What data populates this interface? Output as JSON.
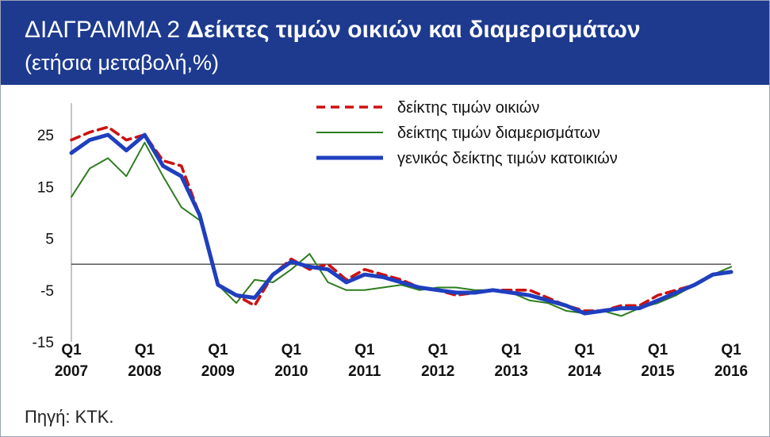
{
  "header": {
    "title_prefix": "ΔΙΑΓΡΑΜΜΑ 2",
    "title_main": "Δείκτες τιμών οικιών και διαμερισμάτων",
    "subtitle": "(ετήσια μεταβολή,%)"
  },
  "source": "Πηγή: ΚΤΚ.",
  "colors": {
    "header_bg": "#1d3a8f",
    "houses": "#cc1111",
    "apartments": "#2e7d1e",
    "general": "#1f3fbf"
  },
  "chart_data": {
    "type": "line",
    "ylim": [
      -15,
      30
    ],
    "yticks": [
      25,
      15,
      5,
      -5,
      -15
    ],
    "xticks": [
      {
        "index": 0,
        "q": "Q1",
        "year": "2007"
      },
      {
        "index": 4,
        "q": "Q1",
        "year": "2008"
      },
      {
        "index": 8,
        "q": "Q1",
        "year": "2009"
      },
      {
        "index": 12,
        "q": "Q1",
        "year": "2010"
      },
      {
        "index": 16,
        "q": "Q1",
        "year": "2011"
      },
      {
        "index": 20,
        "q": "Q1",
        "year": "2012"
      },
      {
        "index": 24,
        "q": "Q1",
        "year": "2013"
      },
      {
        "index": 28,
        "q": "Q1",
        "year": "2014"
      },
      {
        "index": 32,
        "q": "Q1",
        "year": "2015"
      },
      {
        "index": 36,
        "q": "Q1",
        "year": "2016"
      }
    ],
    "legend_position": "top-right",
    "series": [
      {
        "name": "δείκτης τιμών οικιών",
        "style": "dashed",
        "color": "#cc1111",
        "values": [
          24,
          25.5,
          26.5,
          24,
          25,
          20,
          19,
          9.5,
          -4,
          -6,
          -8,
          -2,
          1,
          -1,
          0,
          -3,
          -1,
          -2,
          -3,
          -4.5,
          -5,
          -6,
          -5.5,
          -5,
          -5,
          -5,
          -6.5,
          -8,
          -9,
          -9,
          -8,
          -8,
          -6,
          -5,
          -4,
          -2,
          -1.5
        ]
      },
      {
        "name": "δείκτης τιμών διαμερισμάτων",
        "style": "solid-thin",
        "color": "#2e7d1e",
        "values": [
          13,
          18.5,
          20.5,
          17,
          23.5,
          17,
          11,
          8.5,
          -4,
          -7.5,
          -3,
          -3.5,
          -1,
          2,
          -3.5,
          -5,
          -5,
          -4.5,
          -4,
          -5,
          -4.5,
          -4.5,
          -5,
          -5,
          -5.5,
          -7,
          -7.5,
          -9,
          -9.5,
          -9,
          -10,
          -8.5,
          -7.5,
          -6,
          -4,
          -2,
          -0.5
        ]
      },
      {
        "name": "γενικός δείκτης τιμών κατοικιών",
        "style": "solid-thick",
        "color": "#1f3fbf",
        "values": [
          21.5,
          24,
          25,
          22,
          25,
          19,
          17,
          9.5,
          -4,
          -6,
          -6.5,
          -2,
          0.5,
          -0.5,
          -1,
          -3.5,
          -2,
          -2.5,
          -3.5,
          -4.5,
          -5,
          -5.5,
          -5.5,
          -5,
          -5.5,
          -6,
          -7,
          -8,
          -9.5,
          -9,
          -8.5,
          -8.5,
          -7,
          -5.5,
          -4,
          -2,
          -1.5
        ]
      }
    ]
  }
}
